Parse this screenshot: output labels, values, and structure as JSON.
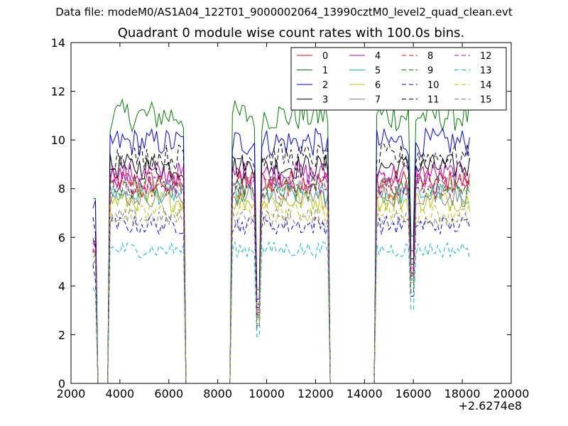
{
  "figure": {
    "suptitle": "Data file: modeM0/AS1A04_122T01_9000002064_13990cztM0_level2_quad_clean.evt",
    "x_offset_label": "+2.6274e8"
  },
  "chart_data": {
    "type": "line",
    "title": "Quadrant 0 module wise count rates with 100.0s bins.",
    "xlabel": "",
    "ylabel": "",
    "xlim": [
      2000,
      20000
    ],
    "ylim": [
      0,
      14
    ],
    "x_ticks": [
      "2000",
      "4000",
      "6000",
      "8000",
      "10000",
      "12000",
      "14000",
      "16000",
      "18000",
      "20000"
    ],
    "y_ticks": [
      "0",
      "2",
      "4",
      "6",
      "8",
      "10",
      "12",
      "14"
    ],
    "x_offset": "+2.6274e8",
    "grid": false,
    "legend_position": "top-right",
    "legend_columns": 4,
    "segments": [
      [
        2900,
        3000
      ],
      [
        3600,
        6600
      ],
      [
        8600,
        9700
      ],
      [
        9750,
        12500
      ],
      [
        14500,
        15950
      ],
      [
        16000,
        18300
      ]
    ],
    "series": [
      {
        "name": "0",
        "color": "#ff0000",
        "dash": "solid",
        "level": 8.3
      },
      {
        "name": "1",
        "color": "#008000",
        "dash": "solid",
        "level": 11.0
      },
      {
        "name": "2",
        "color": "#0000ff",
        "dash": "solid",
        "level": 9.9
      },
      {
        "name": "3",
        "color": "#000000",
        "dash": "solid",
        "level": 8.9
      },
      {
        "name": "4",
        "color": "#bf00bf",
        "dash": "solid",
        "level": 8.6
      },
      {
        "name": "5",
        "color": "#00bfbf",
        "dash": "solid",
        "level": 7.8
      },
      {
        "name": "6",
        "color": "#bfbf00",
        "dash": "solid",
        "level": 7.5
      },
      {
        "name": "7",
        "color": "#808080",
        "dash": "solid",
        "level": 7.7
      },
      {
        "name": "8",
        "color": "#ff0000",
        "dash": "dashed",
        "level": 8.0
      },
      {
        "name": "9",
        "color": "#008000",
        "dash": "dashed",
        "level": 8.1
      },
      {
        "name": "10",
        "color": "#0000ff",
        "dash": "dashed",
        "level": 6.5
      },
      {
        "name": "11",
        "color": "#000000",
        "dash": "dashed",
        "level": 9.3
      },
      {
        "name": "12",
        "color": "#bf00bf",
        "dash": "dashed",
        "level": 8.2
      },
      {
        "name": "13",
        "color": "#00bfbf",
        "dash": "dashed",
        "level": 5.5
      },
      {
        "name": "14",
        "color": "#bfbf00",
        "dash": "dashed",
        "level": 7.0
      },
      {
        "name": "15",
        "color": "#808080",
        "dash": "dashed",
        "level": 6.8
      }
    ]
  }
}
